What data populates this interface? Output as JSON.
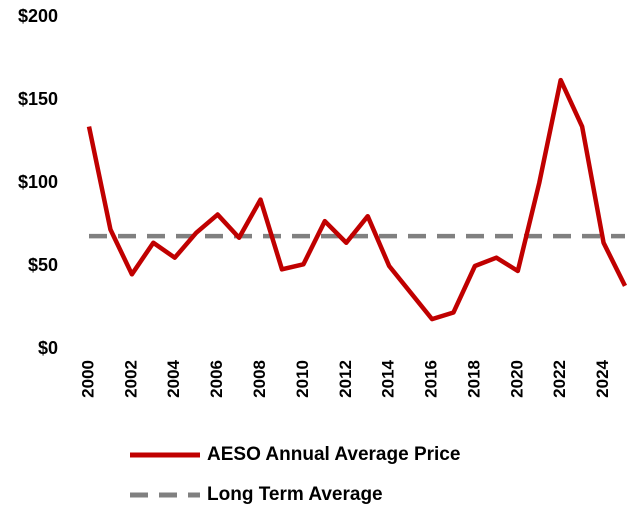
{
  "chart_data": {
    "type": "line",
    "x": [
      2000,
      2001,
      2002,
      2003,
      2004,
      2005,
      2006,
      2007,
      2008,
      2009,
      2010,
      2011,
      2012,
      2013,
      2014,
      2015,
      2016,
      2017,
      2018,
      2019,
      2020,
      2021,
      2022,
      2023,
      2024,
      2025
    ],
    "series": [
      {
        "name": "AESO Annual Average Price",
        "color": "#c00000",
        "dash": false,
        "values": [
          134,
          72,
          45,
          64,
          55,
          70,
          81,
          67,
          90,
          48,
          51,
          77,
          64,
          80,
          50,
          34,
          18,
          22,
          50,
          55,
          47,
          100,
          162,
          134,
          64,
          38
        ]
      },
      {
        "name": "Long Term Average",
        "color": "#808080",
        "dash": true,
        "values": [
          68,
          68,
          68,
          68,
          68,
          68,
          68,
          68,
          68,
          68,
          68,
          68,
          68,
          68,
          68,
          68,
          68,
          68,
          68,
          68,
          68,
          68,
          68,
          68,
          68,
          68
        ]
      }
    ],
    "xlim": [
      2000,
      2025
    ],
    "xticks": [
      2000,
      2002,
      2004,
      2006,
      2008,
      2010,
      2012,
      2014,
      2016,
      2018,
      2020,
      2022,
      2024
    ],
    "ylim": [
      0,
      200
    ],
    "yticks": [
      {
        "value": 0,
        "label": "$0"
      },
      {
        "value": 50,
        "label": "$50"
      },
      {
        "value": 100,
        "label": "$100"
      },
      {
        "value": 150,
        "label": "$150"
      },
      {
        "value": 200,
        "label": "$200"
      }
    ],
    "grid": false,
    "legend": "bottom"
  }
}
